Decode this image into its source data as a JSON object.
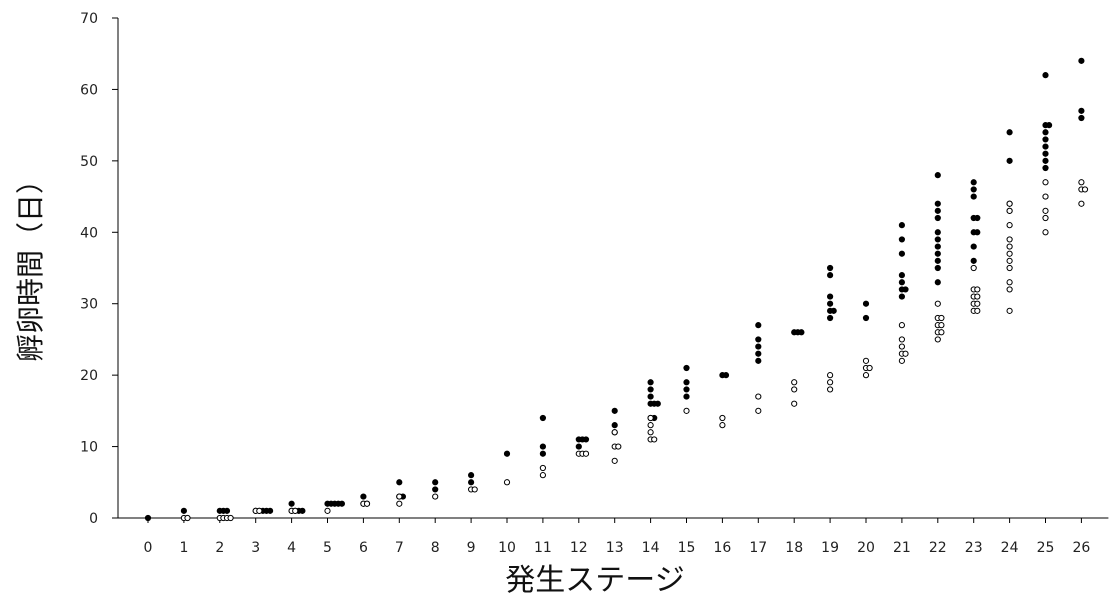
{
  "chart_data": {
    "type": "scatter",
    "xlabel": "発生ステージ",
    "ylabel": "孵卵時間（日）",
    "xlim": [
      0,
      26
    ],
    "ylim": [
      0,
      70
    ],
    "x_ticks": [
      0,
      1,
      2,
      3,
      4,
      5,
      6,
      7,
      8,
      9,
      10,
      11,
      12,
      13,
      14,
      15,
      16,
      17,
      18,
      19,
      20,
      21,
      22,
      23,
      24,
      25,
      26
    ],
    "y_ticks": [
      0,
      10,
      20,
      30,
      40,
      50,
      60,
      70
    ],
    "grid": false,
    "series": [
      {
        "marker": "filled-circle",
        "color": "#000000",
        "points": [
          [
            0,
            0
          ],
          [
            1,
            1
          ],
          [
            2,
            1
          ],
          [
            2,
            1
          ],
          [
            2,
            1
          ],
          [
            3,
            1
          ],
          [
            3,
            1
          ],
          [
            3,
            1
          ],
          [
            3,
            1
          ],
          [
            3,
            1
          ],
          [
            4,
            2
          ],
          [
            4,
            1
          ],
          [
            4,
            1
          ],
          [
            4,
            1
          ],
          [
            4,
            1
          ],
          [
            5,
            2
          ],
          [
            5,
            2
          ],
          [
            5,
            2
          ],
          [
            5,
            2
          ],
          [
            5,
            2
          ],
          [
            6,
            3
          ],
          [
            6,
            2
          ],
          [
            6,
            2
          ],
          [
            7,
            5
          ],
          [
            7,
            3
          ],
          [
            7,
            3
          ],
          [
            8,
            5
          ],
          [
            8,
            4
          ],
          [
            9,
            6
          ],
          [
            9,
            5
          ],
          [
            10,
            9
          ],
          [
            11,
            14
          ],
          [
            11,
            10
          ],
          [
            11,
            9
          ],
          [
            12,
            11
          ],
          [
            12,
            11
          ],
          [
            12,
            11
          ],
          [
            12,
            10
          ],
          [
            13,
            15
          ],
          [
            13,
            13
          ],
          [
            13,
            12
          ],
          [
            14,
            19
          ],
          [
            14,
            18
          ],
          [
            14,
            17
          ],
          [
            14,
            16
          ],
          [
            14,
            16
          ],
          [
            14,
            16
          ],
          [
            14,
            14
          ],
          [
            14,
            14
          ],
          [
            15,
            21
          ],
          [
            15,
            19
          ],
          [
            15,
            18
          ],
          [
            15,
            17
          ],
          [
            16,
            20
          ],
          [
            16,
            20
          ],
          [
            17,
            27
          ],
          [
            17,
            25
          ],
          [
            17,
            24
          ],
          [
            17,
            23
          ],
          [
            17,
            22
          ],
          [
            18,
            26
          ],
          [
            18,
            26
          ],
          [
            18,
            26
          ],
          [
            19,
            35
          ],
          [
            19,
            34
          ],
          [
            19,
            31
          ],
          [
            19,
            30
          ],
          [
            19,
            29
          ],
          [
            19,
            29
          ],
          [
            19,
            28
          ],
          [
            20,
            30
          ],
          [
            20,
            28
          ],
          [
            21,
            41
          ],
          [
            21,
            39
          ],
          [
            21,
            37
          ],
          [
            21,
            34
          ],
          [
            21,
            33
          ],
          [
            21,
            32
          ],
          [
            21,
            32
          ],
          [
            21,
            31
          ],
          [
            22,
            48
          ],
          [
            22,
            44
          ],
          [
            22,
            43
          ],
          [
            22,
            42
          ],
          [
            22,
            40
          ],
          [
            22,
            39
          ],
          [
            22,
            38
          ],
          [
            22,
            37
          ],
          [
            22,
            36
          ],
          [
            22,
            35
          ],
          [
            22,
            33
          ],
          [
            23,
            47
          ],
          [
            23,
            46
          ],
          [
            23,
            45
          ],
          [
            23,
            42
          ],
          [
            23,
            42
          ],
          [
            23,
            40
          ],
          [
            23,
            40
          ],
          [
            23,
            38
          ],
          [
            23,
            36
          ],
          [
            24,
            54
          ],
          [
            24,
            50
          ],
          [
            24,
            44
          ],
          [
            24,
            43
          ],
          [
            25,
            62
          ],
          [
            25,
            55
          ],
          [
            25,
            55
          ],
          [
            25,
            54
          ],
          [
            25,
            53
          ],
          [
            25,
            52
          ],
          [
            25,
            51
          ],
          [
            25,
            50
          ],
          [
            25,
            49
          ],
          [
            26,
            64
          ],
          [
            26,
            57
          ],
          [
            26,
            56
          ]
        ]
      },
      {
        "marker": "open-circle",
        "color": "#000000",
        "points": [
          [
            1,
            0
          ],
          [
            1,
            0
          ],
          [
            2,
            0
          ],
          [
            2,
            0
          ],
          [
            2,
            0
          ],
          [
            2,
            0
          ],
          [
            3,
            1
          ],
          [
            3,
            1
          ],
          [
            4,
            1
          ],
          [
            4,
            1
          ],
          [
            5,
            1
          ],
          [
            6,
            2
          ],
          [
            6,
            2
          ],
          [
            7,
            3
          ],
          [
            7,
            2
          ],
          [
            8,
            3
          ],
          [
            9,
            4
          ],
          [
            9,
            4
          ],
          [
            10,
            5
          ],
          [
            11,
            7
          ],
          [
            11,
            6
          ],
          [
            12,
            9
          ],
          [
            12,
            9
          ],
          [
            12,
            9
          ],
          [
            13,
            12
          ],
          [
            13,
            10
          ],
          [
            13,
            10
          ],
          [
            13,
            8
          ],
          [
            14,
            14
          ],
          [
            14,
            13
          ],
          [
            14,
            12
          ],
          [
            14,
            11
          ],
          [
            14,
            11
          ],
          [
            15,
            15
          ],
          [
            16,
            14
          ],
          [
            16,
            13
          ],
          [
            17,
            17
          ],
          [
            17,
            15
          ],
          [
            18,
            19
          ],
          [
            18,
            18
          ],
          [
            18,
            16
          ],
          [
            19,
            20
          ],
          [
            19,
            19
          ],
          [
            19,
            18
          ],
          [
            20,
            22
          ],
          [
            20,
            21
          ],
          [
            20,
            21
          ],
          [
            20,
            20
          ],
          [
            21,
            27
          ],
          [
            21,
            25
          ],
          [
            21,
            24
          ],
          [
            21,
            23
          ],
          [
            21,
            23
          ],
          [
            21,
            22
          ],
          [
            22,
            30
          ],
          [
            22,
            28
          ],
          [
            22,
            28
          ],
          [
            22,
            27
          ],
          [
            22,
            27
          ],
          [
            22,
            26
          ],
          [
            22,
            26
          ],
          [
            22,
            25
          ],
          [
            23,
            35
          ],
          [
            23,
            32
          ],
          [
            23,
            32
          ],
          [
            23,
            31
          ],
          [
            23,
            31
          ],
          [
            23,
            30
          ],
          [
            23,
            30
          ],
          [
            23,
            29
          ],
          [
            23,
            29
          ],
          [
            24,
            44
          ],
          [
            24,
            43
          ],
          [
            24,
            41
          ],
          [
            24,
            39
          ],
          [
            24,
            38
          ],
          [
            24,
            37
          ],
          [
            24,
            36
          ],
          [
            24,
            35
          ],
          [
            24,
            33
          ],
          [
            24,
            32
          ],
          [
            24,
            29
          ],
          [
            25,
            47
          ],
          [
            25,
            45
          ],
          [
            25,
            43
          ],
          [
            25,
            42
          ],
          [
            25,
            40
          ],
          [
            26,
            47
          ],
          [
            26,
            46
          ],
          [
            26,
            46
          ],
          [
            26,
            44
          ]
        ]
      }
    ]
  }
}
